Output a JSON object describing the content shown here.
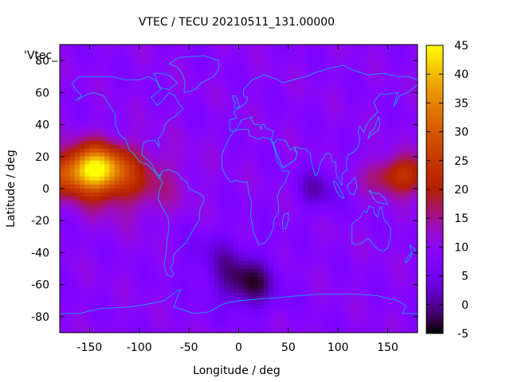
{
  "chart_data": {
    "type": "heatmap",
    "title": "VTEC / TECU 20210511_131.00000",
    "xlabel": "Longitude / deg",
    "ylabel": "Latitude / deg",
    "plot_key": "'Vtec_",
    "xlim": [
      -180,
      180
    ],
    "ylim": [
      -90,
      90
    ],
    "xticks": [
      -150,
      -100,
      -50,
      0,
      50,
      100,
      150
    ],
    "yticks": [
      -80,
      -60,
      -40,
      -20,
      0,
      20,
      40,
      60,
      80
    ],
    "colorbar": {
      "min": -5,
      "max": 45,
      "ticks": [
        -5,
        0,
        5,
        10,
        15,
        20,
        25,
        30,
        35,
        40,
        45
      ],
      "palette": "gnuplot-rgbformulae-7-5-15",
      "colors": [
        "#000000",
        "#4b00b2",
        "#7f00ff",
        "#b8328b",
        "#e1713a",
        "#f5a500",
        "#ffd300",
        "#ffff00"
      ]
    },
    "grid": false,
    "coastline_color": "#1ea0ff",
    "background_vtec": 9,
    "features": [
      {
        "name": "equatorial-peak-pacific",
        "lon": -145,
        "lat": 12,
        "vtec": 40
      },
      {
        "name": "equatorial-anomaly-east-pacific",
        "lon": -115,
        "lat": 5,
        "vtec": 26
      },
      {
        "name": "equatorial-band-western-pacific",
        "lon": 165,
        "lat": 8,
        "vtec": 24
      },
      {
        "name": "south-atlantic-low",
        "lon": 10,
        "lat": -60,
        "vtec": -2
      },
      {
        "name": "indian-ocean-low",
        "lon": 80,
        "lat": 0,
        "vtec": 2
      },
      {
        "name": "southern-ocean-low",
        "lon": -20,
        "lat": -45,
        "vtec": 4
      }
    ],
    "grid_resolution": {
      "dlon": 5,
      "dlat": 2.5
    }
  }
}
